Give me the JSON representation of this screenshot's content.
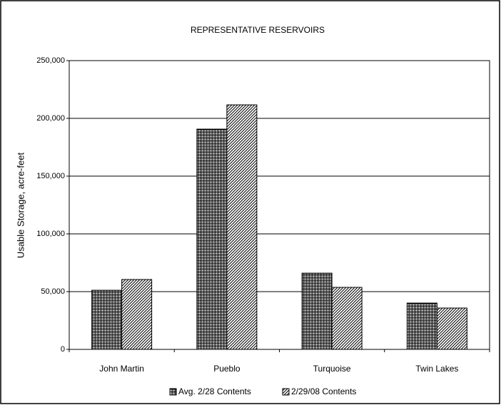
{
  "chart_data": {
    "type": "bar",
    "title": "REPRESENTATIVE RESERVOIRS",
    "y_label": "Usable Storage, acre-feet",
    "categories": [
      "John Martin",
      "Pueblo",
      "Turquoise",
      "Twin Lakes"
    ],
    "series": [
      {
        "name": "Avg. 2/28 Contents",
        "color": "#000000",
        "pattern": "crosshatch",
        "values": [
          51200,
          190700,
          66000,
          40100
        ]
      },
      {
        "name": "2/29/08 Contents",
        "color": "#000000",
        "pattern": "diagonal",
        "values": [
          60500,
          211700,
          53700,
          35800
        ]
      }
    ],
    "ylim": [
      0,
      250000
    ],
    "yticks": [
      0,
      {
        "value": 50000,
        "label": "50,000"
      },
      {
        "value": 100000,
        "label": "100,000"
      },
      {
        "value": 150000,
        "label": "150,000"
      },
      {
        "value": 200000,
        "label": "200,000"
      },
      {
        "value": 250000,
        "label": "250,000"
      }
    ],
    "grid": true,
    "legend": "bottom"
  }
}
